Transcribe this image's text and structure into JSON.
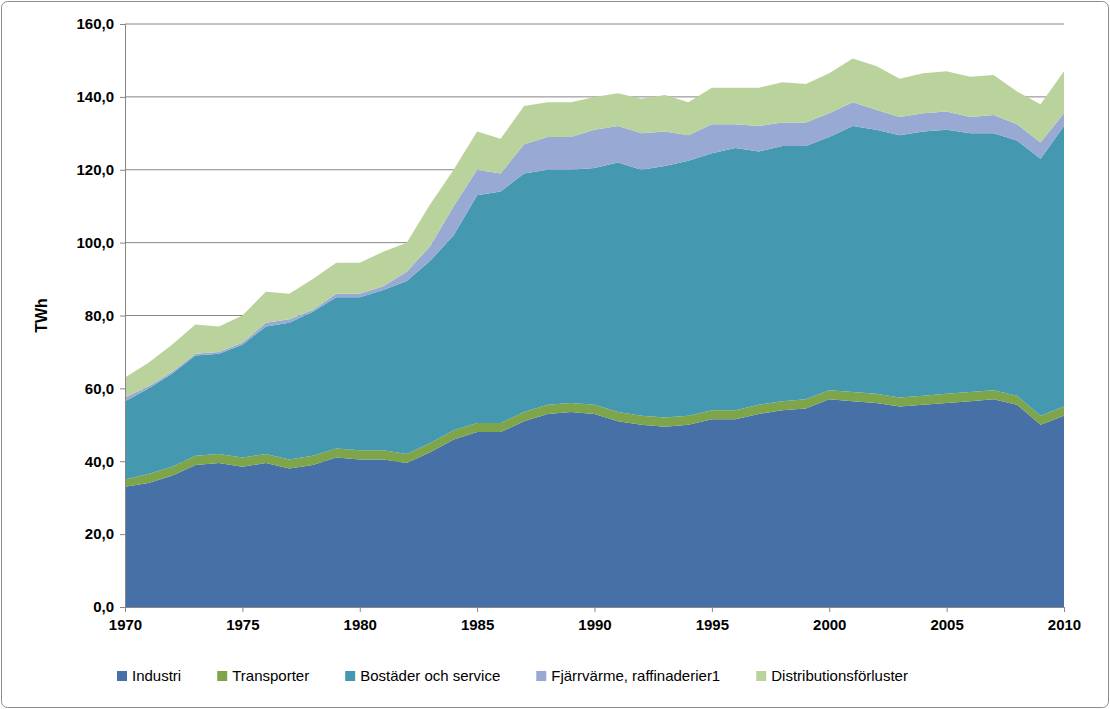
{
  "chart_data": {
    "type": "area",
    "stacked": true,
    "grid": true,
    "legend": "bottom",
    "ylabel": "TWh",
    "x": [
      1970,
      1971,
      1972,
      1973,
      1974,
      1975,
      1976,
      1977,
      1978,
      1979,
      1980,
      1981,
      1982,
      1983,
      1984,
      1985,
      1986,
      1987,
      1988,
      1989,
      1990,
      1991,
      1992,
      1993,
      1994,
      1995,
      1996,
      1997,
      1998,
      1999,
      2000,
      2001,
      2002,
      2003,
      2004,
      2005,
      2006,
      2007,
      2008,
      2009,
      2010
    ],
    "xlim": [
      1970,
      2010
    ],
    "xticks": [
      1970,
      1975,
      1980,
      1985,
      1990,
      1995,
      2000,
      2005,
      2010
    ],
    "ylim": [
      0,
      160
    ],
    "yticks": [
      {
        "value": 0,
        "label": "0,0"
      },
      {
        "value": 20,
        "label": "20,0"
      },
      {
        "value": 40,
        "label": "40,0"
      },
      {
        "value": 60,
        "label": "60,0"
      },
      {
        "value": 80,
        "label": "80,0"
      },
      {
        "value": 100,
        "label": "100,0"
      },
      {
        "value": 120,
        "label": "120,0"
      },
      {
        "value": 140,
        "label": "140,0"
      },
      {
        "value": 160,
        "label": "160,0"
      }
    ],
    "series": [
      {
        "name": "Industri",
        "color": "#4770a6",
        "values": [
          33,
          34,
          36,
          39,
          39.5,
          38.5,
          39.5,
          38,
          39,
          41,
          40.5,
          40.5,
          39.5,
          42.5,
          46,
          48,
          48,
          51,
          53,
          53.5,
          53,
          51,
          50,
          49.5,
          50,
          51.5,
          51.5,
          53,
          54,
          54.5,
          57,
          56.5,
          56,
          55,
          55.5,
          56,
          56.5,
          57,
          55.5,
          50,
          52.5
        ]
      },
      {
        "name": "Transporter",
        "color": "#7fa54b",
        "values": [
          2,
          2.5,
          2.5,
          2.5,
          2.5,
          2.5,
          2.5,
          2.5,
          2.5,
          2.5,
          2.5,
          2.5,
          2.5,
          2.5,
          2.5,
          2.5,
          2.5,
          2.5,
          2.5,
          2.5,
          2.5,
          2.5,
          2.5,
          2.5,
          2.5,
          2.5,
          2.5,
          2.5,
          2.5,
          2.5,
          2.5,
          2.5,
          2.5,
          2.5,
          2.5,
          2.5,
          2.5,
          2.5,
          2.5,
          2.5,
          2.5
        ]
      },
      {
        "name": "Bostäder och service",
        "color": "#4499b1",
        "values": [
          21.5,
          23.5,
          25.5,
          27.5,
          27.5,
          31,
          35,
          37.5,
          39.5,
          41.5,
          42,
          44,
          47.5,
          50,
          53.5,
          62.5,
          63.5,
          65.5,
          64.5,
          64,
          65,
          68.5,
          67.5,
          69,
          70,
          70.5,
          72,
          69.5,
          70,
          69.5,
          69.5,
          73,
          72.5,
          72,
          72.5,
          72.5,
          71,
          70.5,
          70,
          70.5,
          77
        ]
      },
      {
        "name": "Fjärrvärme, raffinaderier1",
        "color": "#98aad3",
        "values": [
          1,
          0.5,
          0.5,
          0.5,
          0.5,
          0.5,
          1,
          1,
          0.5,
          1,
          1,
          1,
          2.5,
          4,
          8,
          7,
          5,
          8,
          9,
          9,
          10.5,
          10,
          10,
          9.5,
          7,
          8,
          6.5,
          7,
          6.5,
          6.5,
          6.5,
          6.5,
          5.5,
          5,
          5,
          5,
          4.5,
          5,
          4.5,
          4.5,
          3.5
        ]
      },
      {
        "name": "Distributionsförluster",
        "color": "#bad39c",
        "values": [
          5.5,
          6.5,
          7.5,
          8,
          7,
          7.5,
          8.5,
          7,
          8.5,
          8.5,
          8.5,
          9.5,
          8,
          11.5,
          10,
          10.5,
          9.5,
          10.5,
          9.5,
          9.5,
          9,
          9,
          9.5,
          10,
          9,
          10,
          10,
          10.5,
          11,
          10.5,
          11,
          12,
          12,
          10.5,
          11,
          11,
          11,
          11,
          9,
          10.5,
          11.5
        ]
      }
    ]
  }
}
